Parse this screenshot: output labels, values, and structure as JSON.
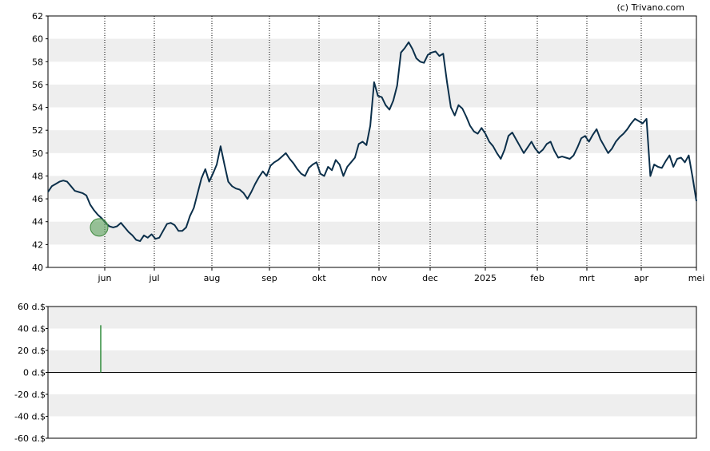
{
  "watermark": "(c) Trivano.com",
  "chart_data": [
    {
      "type": "line",
      "name": "price",
      "ylim": [
        40,
        62
      ],
      "yticks": [
        40,
        42,
        44,
        46,
        48,
        50,
        52,
        54,
        56,
        58,
        60,
        62
      ],
      "xticks": [
        "jun",
        "jul",
        "aug",
        "sep",
        "okt",
        "nov",
        "dec",
        "2025",
        "feb",
        "mrt",
        "apr",
        "mei"
      ],
      "grid": "banded-horizontal, dotted-vertical",
      "line_color": "#0b2f4a",
      "marker_color": "#5aa05a",
      "marker": {
        "at": "jun",
        "value": 43.5
      },
      "values": [
        46.6,
        47.1,
        47.3,
        47.5,
        47.6,
        47.5,
        47.1,
        46.7,
        46.6,
        46.5,
        46.3,
        45.5,
        45.0,
        44.6,
        44.3,
        43.9,
        43.6,
        43.5,
        43.6,
        43.9,
        43.5,
        43.1,
        42.8,
        42.4,
        42.3,
        42.8,
        42.6,
        42.9,
        42.5,
        42.6,
        43.2,
        43.8,
        43.9,
        43.7,
        43.2,
        43.2,
        43.5,
        44.5,
        45.2,
        46.5,
        47.8,
        48.6,
        47.5,
        48.2,
        49.0,
        50.6,
        49.0,
        47.5,
        47.1,
        46.9,
        46.8,
        46.5,
        46.0,
        46.6,
        47.3,
        47.9,
        48.4,
        48.0,
        48.9,
        49.2,
        49.4,
        49.7,
        50.0,
        49.5,
        49.1,
        48.6,
        48.2,
        48.0,
        48.7,
        49.0,
        49.2,
        48.2,
        48.0,
        48.8,
        48.5,
        49.4,
        49.0,
        48.0,
        48.8,
        49.2,
        49.6,
        50.8,
        51.0,
        50.7,
        52.4,
        56.2,
        55.0,
        54.9,
        54.2,
        53.8,
        54.6,
        55.9,
        58.8,
        59.2,
        59.7,
        59.1,
        58.3,
        58.0,
        57.9,
        58.6,
        58.8,
        58.9,
        58.5,
        58.7,
        56.2,
        54.0,
        53.3,
        54.2,
        53.9,
        53.2,
        52.4,
        51.9,
        51.7,
        52.2,
        51.7,
        51.0,
        50.6,
        50.0,
        49.5,
        50.3,
        51.5,
        51.8,
        51.2,
        50.6,
        50.0,
        50.5,
        51.0,
        50.4,
        50.0,
        50.3,
        50.8,
        51.0,
        50.2,
        49.6,
        49.7,
        49.6,
        49.5,
        49.8,
        50.5,
        51.3,
        51.5,
        51.0,
        51.6,
        52.1,
        51.2,
        50.6,
        50.0,
        50.4,
        51.0,
        51.4,
        51.7,
        52.1,
        52.6,
        53.0,
        52.8,
        52.6,
        53.0,
        48.0,
        49.0,
        48.8,
        48.7,
        49.3,
        49.8,
        48.8,
        49.5,
        49.6,
        49.2,
        49.8,
        47.9,
        45.8
      ],
      "points_per_tick": 15.6
    },
    {
      "type": "bar",
      "name": "volume",
      "ylim": [
        -60,
        60
      ],
      "ytick_labels": [
        "60 d.$",
        "40 d.$",
        "20 d.$",
        "0 d.$",
        "-20 d.$",
        "-40 d.$",
        "-60 d.$"
      ],
      "yticks": [
        60,
        40,
        20,
        0,
        -20,
        -40,
        -60
      ],
      "bar_color": "#2e8b3a",
      "bars": [
        {
          "at": "jun",
          "value": 43
        }
      ]
    }
  ]
}
